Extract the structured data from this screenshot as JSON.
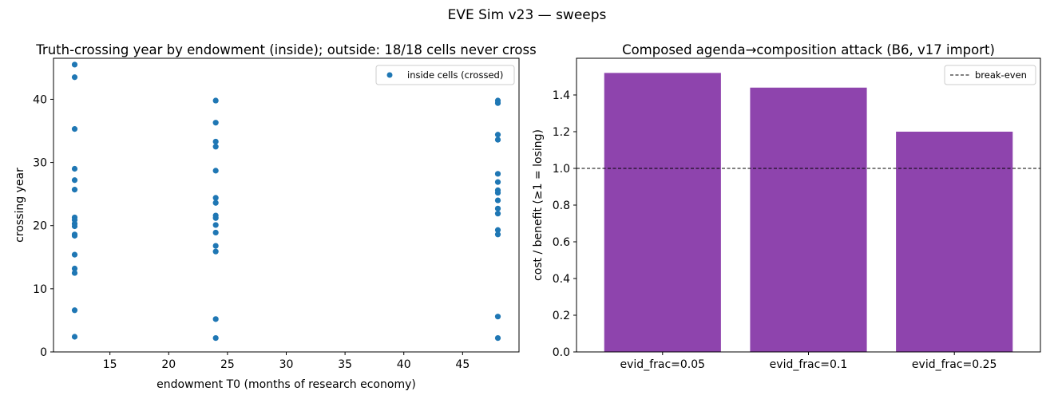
{
  "figure": {
    "suptitle": "EVE Sim v23 — sweeps"
  },
  "chart_data": [
    {
      "type": "scatter",
      "title": "Truth-crossing year by endowment (inside); outside: 18/18 cells never cross",
      "xlabel": "endowment T0 (months of research economy)",
      "ylabel": "crossing year",
      "xlim": [
        10.2,
        49.8
      ],
      "ylim": [
        0,
        46.5
      ],
      "xticks": [
        15,
        20,
        25,
        30,
        35,
        40,
        45
      ],
      "yticks": [
        0,
        10,
        20,
        30,
        40
      ],
      "grid": false,
      "legend": {
        "position": "top-right",
        "entries": [
          "inside cells (crossed)"
        ]
      },
      "series": [
        {
          "name": "inside cells (crossed)",
          "color": "#1f77b4",
          "points": [
            [
              12,
              45.5
            ],
            [
              12,
              43.5
            ],
            [
              12,
              35.3
            ],
            [
              12,
              29.0
            ],
            [
              12,
              27.2
            ],
            [
              12,
              25.7
            ],
            [
              12,
              21.3
            ],
            [
              12,
              20.9
            ],
            [
              12,
              20.3
            ],
            [
              12,
              19.9
            ],
            [
              12,
              18.6
            ],
            [
              12,
              18.4
            ],
            [
              12,
              15.4
            ],
            [
              12,
              13.2
            ],
            [
              12,
              12.5
            ],
            [
              12,
              6.6
            ],
            [
              12,
              2.4
            ],
            [
              24,
              39.8
            ],
            [
              24,
              36.3
            ],
            [
              24,
              33.3
            ],
            [
              24,
              32.5
            ],
            [
              24,
              28.7
            ],
            [
              24,
              24.4
            ],
            [
              24,
              23.6
            ],
            [
              24,
              21.6
            ],
            [
              24,
              21.2
            ],
            [
              24,
              20.1
            ],
            [
              24,
              18.9
            ],
            [
              24,
              16.8
            ],
            [
              24,
              15.9
            ],
            [
              24,
              5.2
            ],
            [
              24,
              2.2
            ],
            [
              48,
              39.8
            ],
            [
              48,
              39.4
            ],
            [
              48,
              34.4
            ],
            [
              48,
              33.6
            ],
            [
              48,
              28.2
            ],
            [
              48,
              26.9
            ],
            [
              48,
              25.6
            ],
            [
              48,
              25.2
            ],
            [
              48,
              24.0
            ],
            [
              48,
              22.7
            ],
            [
              48,
              21.9
            ],
            [
              48,
              19.3
            ],
            [
              48,
              18.6
            ],
            [
              48,
              5.6
            ],
            [
              48,
              2.2
            ]
          ]
        }
      ]
    },
    {
      "type": "bar",
      "title": "Composed agenda→composition attack (B6, v17 import)",
      "xlabel": "",
      "ylabel": "cost / benefit (≥1 = losing)",
      "categories": [
        "evid_frac=0.05",
        "evid_frac=0.1",
        "evid_frac=0.25"
      ],
      "values": [
        1.52,
        1.44,
        1.2
      ],
      "color": "#8e44ad",
      "ylim": [
        0,
        1.6
      ],
      "yticks": [
        0.0,
        0.2,
        0.4,
        0.6,
        0.8,
        1.0,
        1.2,
        1.4
      ],
      "ytick_labels": [
        "0.0",
        "0.2",
        "0.4",
        "0.6",
        "0.8",
        "1.0",
        "1.2",
        "1.4"
      ],
      "reference_line": {
        "value": 1.0,
        "label": "break-even",
        "style": "dashed",
        "color": "#000000"
      },
      "grid": false,
      "legend": {
        "position": "top-right",
        "entries": [
          "break-even"
        ]
      }
    }
  ]
}
